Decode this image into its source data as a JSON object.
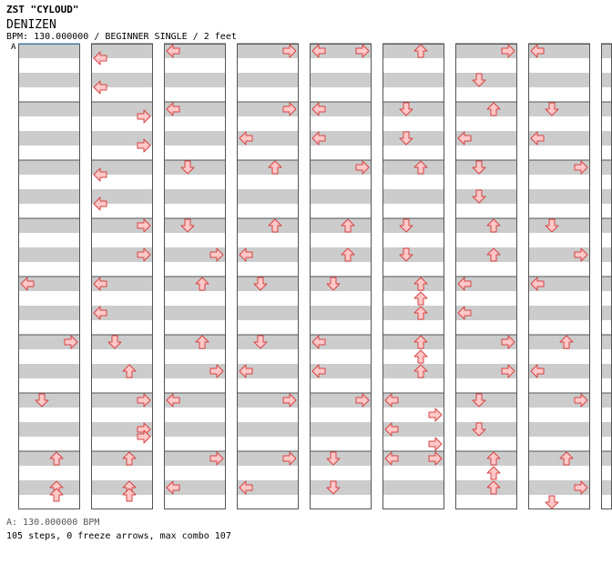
{
  "header": {
    "title": "ZST \"CYLOUD\"",
    "song": "DENIZEN",
    "info": "BPM: 130.000000 / BEGINNER SINGLE / 2 feet"
  },
  "bpm_marker": "A",
  "footer": {
    "bpm_legend": "A: 130.000000 BPM",
    "stats": "105 steps, 0 freeze arrows, max combo 107"
  },
  "colors": {
    "stripe_gray": "#cccccc",
    "arrow_fill": "#ffc8c8",
    "arrow_stroke": "#d44444",
    "border": "#555555",
    "marker_line": "#4488cc"
  },
  "chart_data": {
    "type": "step-chart",
    "mode": "BEGINNER SINGLE",
    "bpm": 130.0,
    "note": "Each column = 4 measures, each measure = 8 rows (8th notes). Lane 0=Left,1=Down,2=Up,3=Right. Value = row offset within measure.",
    "columns": [
      [
        [],
        [],
        [],
        []
      ],
      [
        [],
        [],
        [],
        []
      ],
      [
        [],
        [],
        [],
        []
      ],
      [
        [],
        [],
        [],
        []
      ],
      [
        [],
        [],
        [],
        []
      ],
      [
        [],
        [],
        [],
        []
      ],
      [
        [],
        [],
        [],
        []
      ],
      [
        [],
        [],
        [],
        []
      ],
      [
        [],
        [],
        [],
        []
      ]
    ],
    "notes": [
      {
        "col": 0,
        "m": 0,
        "r": 0,
        "l": 0
      },
      {
        "col": 1,
        "m": 0,
        "r": 1,
        "l": 0
      },
      {
        "col": 1,
        "m": 0,
        "r": 3,
        "l": 0
      },
      {
        "col": 1,
        "m": 0,
        "r": 7,
        "l": 0
      },
      {
        "col": 1,
        "m": 1,
        "r": 1,
        "l": 3
      },
      {
        "col": 1,
        "m": 1,
        "r": 4,
        "l": 0
      },
      {
        "col": 1,
        "m": 1,
        "r": 6,
        "l": 3
      },
      {
        "col": 1,
        "m": 2,
        "r": 3,
        "l": 0
      },
      {
        "col": 1,
        "m": 2,
        "r": 5,
        "l": 0
      },
      {
        "col": 2,
        "m": 0,
        "r": 0,
        "l": 0
      },
      {
        "col": 2,
        "m": 0,
        "r": 6,
        "l": 3
      },
      {
        "col": 2,
        "m": 0,
        "r": 2,
        "l": 1
      },
      {
        "col": 2,
        "m": 1,
        "r": 0,
        "l": 0
      },
      {
        "col": 2,
        "m": 1,
        "r": 4,
        "l": 3
      },
      {
        "col": 2,
        "m": 1,
        "r": 0,
        "l": 2
      },
      {
        "col": 2,
        "m": 2,
        "r": 0,
        "l": 1
      },
      {
        "col": 2,
        "m": 2,
        "r": 2,
        "l": 3
      },
      {
        "col": 2,
        "m": 3,
        "r": 0,
        "l": 2
      },
      {
        "col": 3,
        "m": 0,
        "r": 0,
        "l": 3
      },
      {
        "col": 3,
        "m": 0,
        "r": 6,
        "l": 3
      },
      {
        "col": 3,
        "m": 1,
        "r": 2,
        "l": 0
      },
      {
        "col": 3,
        "m": 1,
        "r": 0,
        "l": 2
      },
      {
        "col": 3,
        "m": 2,
        "r": 0,
        "l": 2
      },
      {
        "col": 3,
        "m": 2,
        "r": 2,
        "l": 0
      },
      {
        "col": 3,
        "m": 3,
        "r": 0,
        "l": 1
      },
      {
        "col": 3,
        "m": 3,
        "r": 4,
        "l": 0
      }
    ]
  }
}
